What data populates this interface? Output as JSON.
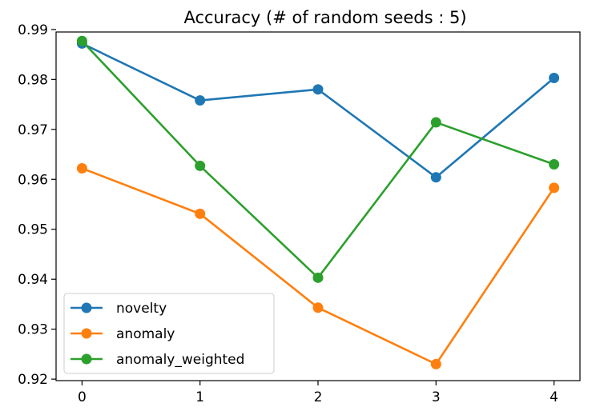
{
  "chart_data": {
    "type": "line",
    "title": "Accuracy (# of random seeds : 5)",
    "xlabel": "",
    "ylabel": "",
    "x": [
      0,
      1,
      2,
      3,
      4
    ],
    "xticks": [
      "0",
      "1",
      "2",
      "3",
      "4"
    ],
    "yticks": [
      "0.92",
      "0.93",
      "0.94",
      "0.95",
      "0.96",
      "0.97",
      "0.98",
      "0.99"
    ],
    "xlim": [
      -0.22,
      4.22
    ],
    "ylim": [
      0.9197,
      0.9895
    ],
    "grid": false,
    "legend_position": "lower-left",
    "series": [
      {
        "name": "novelty",
        "color": "#1f77b4",
        "values": [
          0.9872,
          0.9758,
          0.978,
          0.9604,
          0.9803
        ]
      },
      {
        "name": "anomaly",
        "color": "#ff7f0e",
        "values": [
          0.9622,
          0.9531,
          0.9343,
          0.923,
          0.9583
        ]
      },
      {
        "name": "anomaly_weighted",
        "color": "#2ca02c",
        "values": [
          0.9877,
          0.9627,
          0.9403,
          0.9714,
          0.963
        ]
      }
    ]
  }
}
